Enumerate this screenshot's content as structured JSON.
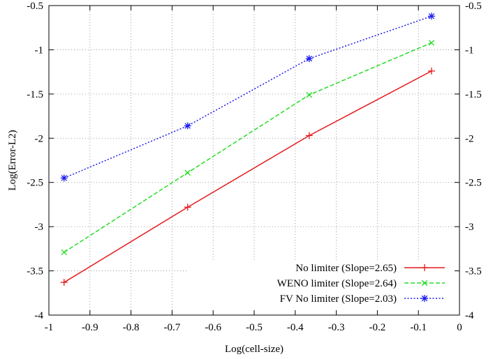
{
  "chart_data": {
    "type": "line",
    "xlabel": "Log(cell-size)",
    "ylabel": "Log(Error-L2)",
    "xlim": [
      -1,
      0
    ],
    "ylim": [
      -4,
      -0.5
    ],
    "x_ticks": [
      -1,
      -0.9,
      -0.8,
      -0.7,
      -0.6,
      -0.5,
      -0.4,
      -0.3,
      -0.2,
      -0.1,
      0
    ],
    "x_tick_labels": [
      "-1",
      "-0.9",
      "-0.8",
      "-0.7",
      "-0.6",
      "-0.5",
      "-0.4",
      "-0.3",
      "-0.2",
      "-0.1",
      "0"
    ],
    "y_ticks": [
      -4,
      -3.5,
      -3,
      -2.5,
      -2,
      -1.5,
      -1,
      -0.5
    ],
    "y_tick_labels": [
      "-4",
      "-3.5",
      "-3",
      "-2.5",
      "-2",
      "-1.5",
      "-1",
      "-0.5"
    ],
    "grid": true,
    "legend_position": "bottom-right",
    "series": [
      {
        "name": "No limiter (Slope=2.65)",
        "color": "#e41a1c",
        "marker": "plus",
        "dash": "solid",
        "x": [
          -0.963,
          -0.662,
          -0.366,
          -0.068
        ],
        "y": [
          -3.63,
          -2.78,
          -1.97,
          -1.24
        ]
      },
      {
        "name": "WENO limiter (Slope=2.64)",
        "color": "#22dd22",
        "marker": "cross",
        "dash": "dashed",
        "x": [
          -0.963,
          -0.662,
          -0.366,
          -0.068
        ],
        "y": [
          -3.29,
          -2.39,
          -1.51,
          -0.92
        ]
      },
      {
        "name": "FV No limiter (Slope=2.03)",
        "color": "#1a1aee",
        "marker": "star",
        "dash": "dotted",
        "x": [
          -0.963,
          -0.662,
          -0.366,
          -0.068
        ],
        "y": [
          -2.45,
          -1.86,
          -1.1,
          -0.62
        ]
      }
    ]
  }
}
